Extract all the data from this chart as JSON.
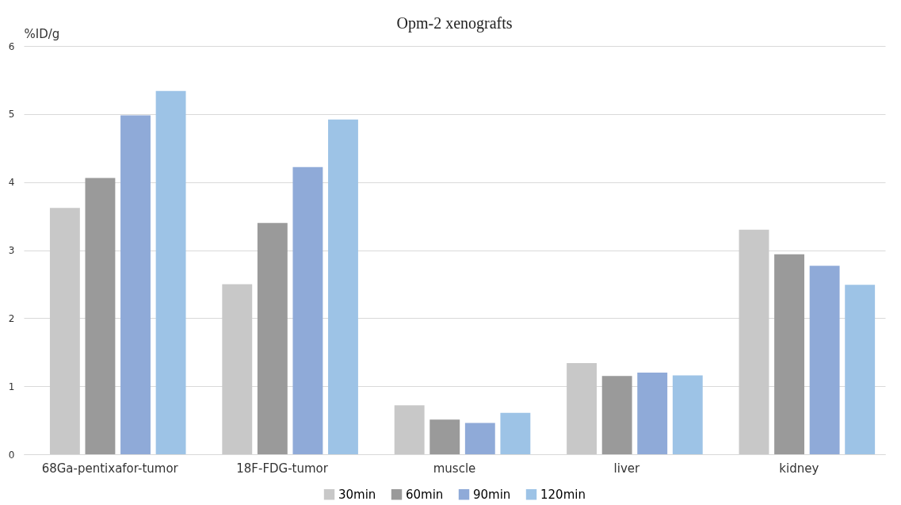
{
  "chart_data": {
    "type": "bar",
    "title": "Opm-2 xenografts",
    "ylabel": "%ID/g",
    "categories": [
      "68Ga-pentixafor-tumor",
      "18F-FDG-tumor",
      "muscle",
      "liver",
      "kidney"
    ],
    "series": [
      {
        "name": "30min",
        "color": "#c8c8c8",
        "values": [
          3.62,
          2.5,
          0.72,
          1.34,
          3.3
        ]
      },
      {
        "name": "60min",
        "color": "#9a9a9a",
        "values": [
          4.06,
          3.4,
          0.51,
          1.15,
          2.94
        ]
      },
      {
        "name": "90min",
        "color": "#8faad8",
        "values": [
          4.98,
          4.22,
          0.46,
          1.2,
          2.77
        ]
      },
      {
        "name": "120min",
        "color": "#9dc3e6",
        "values": [
          5.34,
          4.92,
          0.61,
          1.16,
          2.49
        ]
      }
    ],
    "ylim": [
      0,
      6
    ],
    "yticks": [
      0,
      1,
      2,
      3,
      4,
      5,
      6
    ],
    "grid": "y",
    "legend": "bottom"
  }
}
